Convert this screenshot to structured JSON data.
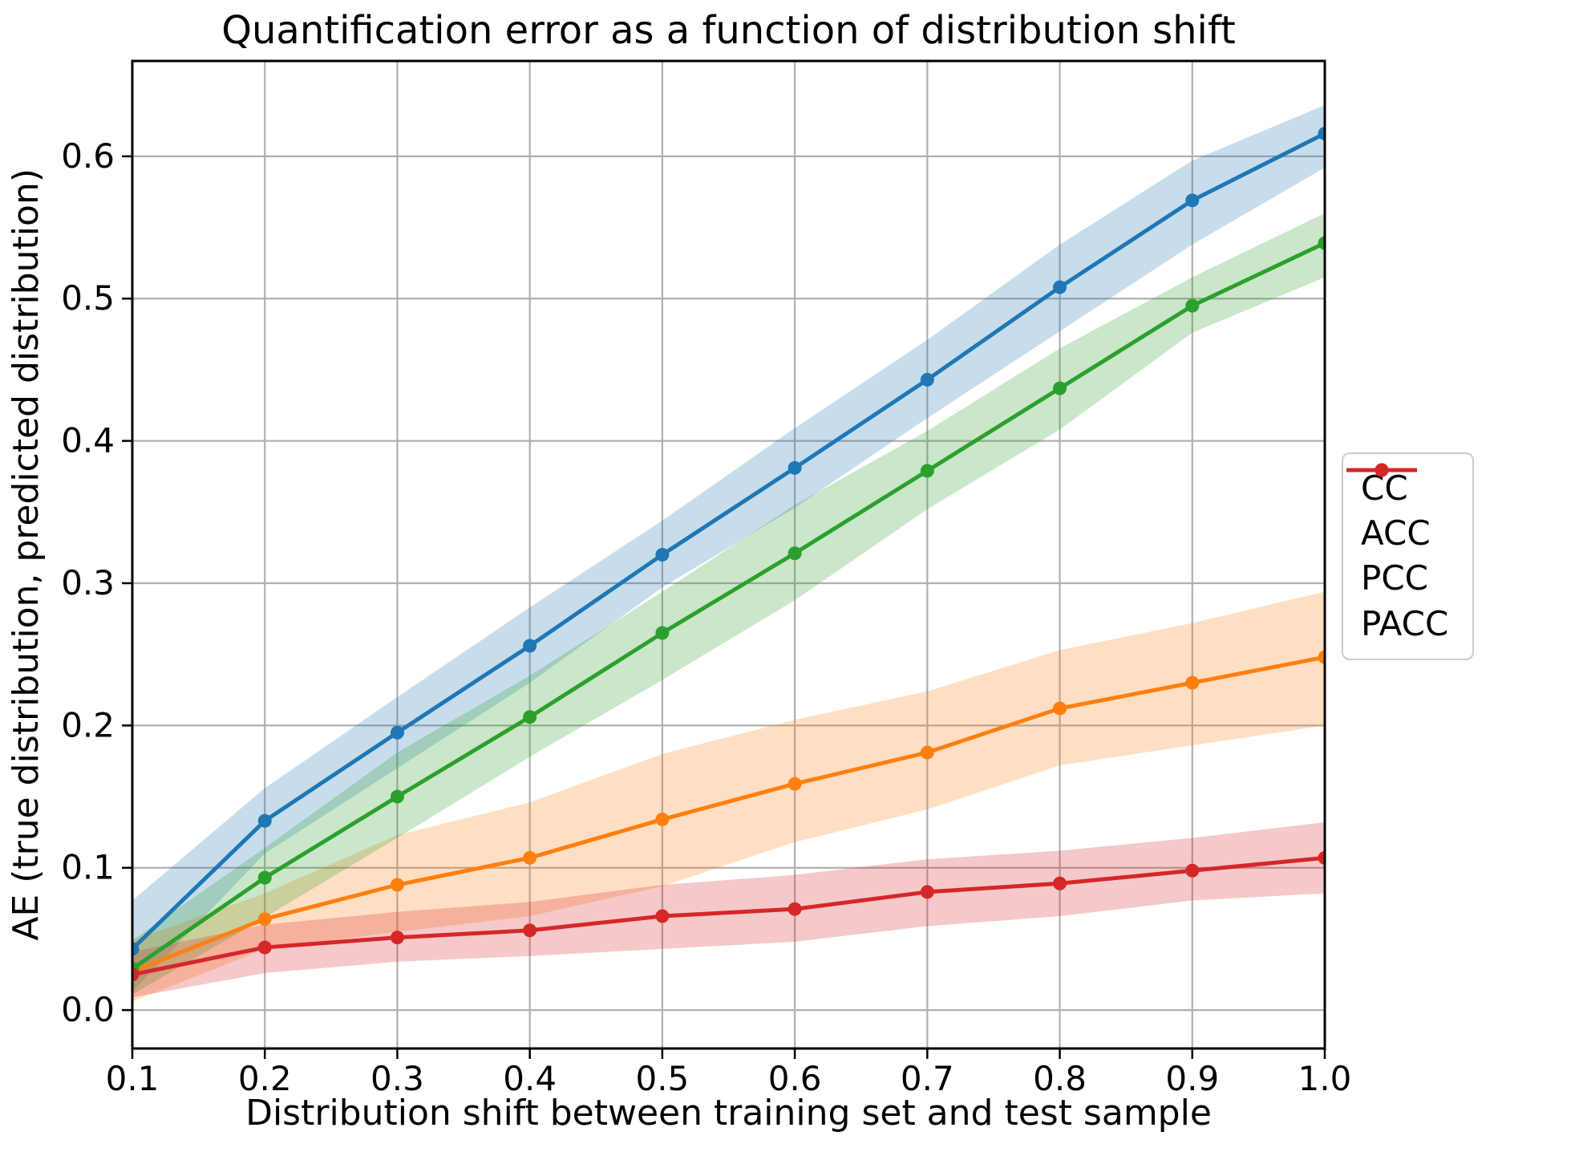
{
  "chart_data": {
    "type": "line",
    "title": "Quantification error as a function of distribution shift",
    "xlabel": "Distribution shift between training set and test sample",
    "ylabel": "AE (true distribution, predicted distribution)",
    "x": [
      0.1,
      0.2,
      0.3,
      0.4,
      0.5,
      0.6,
      0.7,
      0.8,
      0.9,
      1.0
    ],
    "x_tick_labels": [
      "0.1",
      "0.2",
      "0.3",
      "0.4",
      "0.5",
      "0.6",
      "0.7",
      "0.8",
      "0.9",
      "1.0"
    ],
    "y_ticks": [
      0.0,
      0.1,
      0.2,
      0.3,
      0.4,
      0.5,
      0.6
    ],
    "y_tick_labels": [
      "0.0",
      "0.1",
      "0.2",
      "0.3",
      "0.4",
      "0.5",
      "0.6"
    ],
    "xlim": [
      0.1,
      1.0
    ],
    "ylim": [
      -0.027,
      0.667
    ],
    "grid": true,
    "legend_position": "right-outside",
    "colors": {
      "grid": "#b0b0b0",
      "spine": "#000000",
      "background": "#ffffff",
      "band_opacity": 0.25
    },
    "series": [
      {
        "name": "CC",
        "color": "#1f77b4",
        "values": [
          0.043,
          0.133,
          0.195,
          0.256,
          0.32,
          0.381,
          0.443,
          0.508,
          0.569,
          0.616
        ],
        "band_lo": [
          0.013,
          0.11,
          0.17,
          0.23,
          0.297,
          0.353,
          0.416,
          0.477,
          0.538,
          0.592
        ],
        "band_hi": [
          0.077,
          0.156,
          0.22,
          0.283,
          0.344,
          0.409,
          0.471,
          0.538,
          0.597,
          0.636
        ]
      },
      {
        "name": "ACC",
        "color": "#ff7f0e",
        "values": [
          0.027,
          0.064,
          0.088,
          0.107,
          0.134,
          0.159,
          0.181,
          0.212,
          0.23,
          0.248
        ],
        "band_lo": [
          0.006,
          0.043,
          0.055,
          0.066,
          0.087,
          0.118,
          0.141,
          0.172,
          0.186,
          0.2
        ],
        "band_hi": [
          0.049,
          0.082,
          0.123,
          0.146,
          0.18,
          0.204,
          0.224,
          0.253,
          0.272,
          0.294
        ]
      },
      {
        "name": "PCC",
        "color": "#2ca02c",
        "values": [
          0.029,
          0.093,
          0.15,
          0.206,
          0.265,
          0.321,
          0.379,
          0.437,
          0.495,
          0.539
        ],
        "band_lo": [
          0.011,
          0.065,
          0.121,
          0.178,
          0.232,
          0.288,
          0.352,
          0.408,
          0.476,
          0.515
        ],
        "band_hi": [
          0.049,
          0.114,
          0.181,
          0.235,
          0.294,
          0.355,
          0.407,
          0.465,
          0.515,
          0.56
        ]
      },
      {
        "name": "PACC",
        "color": "#d62728",
        "values": [
          0.025,
          0.044,
          0.051,
          0.056,
          0.066,
          0.071,
          0.083,
          0.089,
          0.098,
          0.107
        ],
        "band_lo": [
          0.009,
          0.026,
          0.034,
          0.038,
          0.043,
          0.048,
          0.059,
          0.066,
          0.077,
          0.082
        ],
        "band_hi": [
          0.041,
          0.06,
          0.069,
          0.076,
          0.088,
          0.095,
          0.106,
          0.112,
          0.121,
          0.132
        ]
      }
    ]
  }
}
